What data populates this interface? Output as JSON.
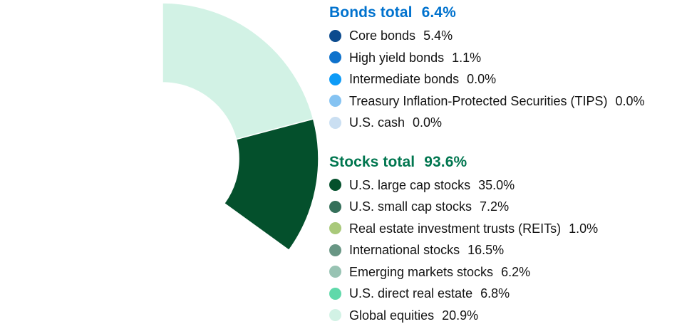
{
  "colors": {
    "background": "#FFFFFF",
    "bonds_accent": "#0072CE",
    "stocks_accent": "#00764F",
    "text": "#131313",
    "slice_separator": "#FFFFFF"
  },
  "legend": {
    "groups": [
      {
        "id": "bonds",
        "title": "Bonds total",
        "total": "6.4%",
        "accent_color": "#0072CE",
        "items": [
          {
            "label": "Core bonds",
            "value": "5.4%",
            "color": "#0C4B8E"
          },
          {
            "label": "High yield bonds",
            "value": "1.1%",
            "color": "#0E72CC"
          },
          {
            "label": "Intermediate bonds",
            "value": "0.0%",
            "color": "#0D9BF7"
          },
          {
            "label": "Treasury Inflation-Protected Securities (TIPS)",
            "value": "0.0%",
            "color": "#85C3F2"
          },
          {
            "label": "U.S. cash",
            "value": "0.0%",
            "color": "#CADFF2"
          }
        ]
      },
      {
        "id": "stocks",
        "title": "Stocks total",
        "total": "93.6%",
        "accent_color": "#00764F",
        "items": [
          {
            "label": "U.S. large cap stocks",
            "value": "35.0%",
            "color": "#04502C"
          },
          {
            "label": "U.S. small cap stocks",
            "value": "7.2%",
            "color": "#35705A"
          },
          {
            "label": "Real estate investment trusts (REITs)",
            "value": "1.0%",
            "color": "#A9C97A"
          },
          {
            "label": "International stocks",
            "value": "16.5%",
            "color": "#689684"
          },
          {
            "label": "Emerging markets stocks",
            "value": "6.2%",
            "color": "#98C3B3"
          },
          {
            "label": "U.S. direct real estate",
            "value": "6.8%",
            "color": "#5FD9AA"
          },
          {
            "label": "Global equities",
            "value": "20.9%",
            "color": "#D2F2E5"
          }
        ]
      }
    ]
  },
  "chart_data": {
    "type": "pie",
    "subtype": "donut",
    "title": "",
    "direction": "clockwise",
    "start_angle_deg": 0,
    "inner_radius_ratio": 0.49,
    "legend_position": "right",
    "groups": [
      {
        "name": "Bonds total",
        "value": 6.4
      },
      {
        "name": "Stocks total",
        "value": 93.6
      }
    ],
    "segments": [
      {
        "label": "Core bonds",
        "value": 5.4,
        "color": "#0C4B8E"
      },
      {
        "label": "High yield bonds",
        "value": 1.1,
        "color": "#0E72CC"
      },
      {
        "label": "Intermediate bonds",
        "value": 0.0,
        "color": "#0D9BF7"
      },
      {
        "label": "Treasury Inflation-Protected Securities (TIPS)",
        "value": 0.0,
        "color": "#85C3F2"
      },
      {
        "label": "U.S. cash",
        "value": 0.0,
        "color": "#CADFF2"
      },
      {
        "label": "U.S. large cap stocks",
        "value": 35.0,
        "color": "#04502C"
      },
      {
        "label": "U.S. small cap stocks",
        "value": 7.2,
        "color": "#35705A"
      },
      {
        "label": "Real estate investment trusts (REITs)",
        "value": 1.0,
        "color": "#A9C97A"
      },
      {
        "label": "International stocks",
        "value": 16.5,
        "color": "#689684"
      },
      {
        "label": "Emerging markets stocks",
        "value": 6.2,
        "color": "#98C3B3"
      },
      {
        "label": "U.S. direct real estate",
        "value": 6.8,
        "color": "#5FD9AA"
      },
      {
        "label": "Global equities",
        "value": 20.9,
        "color": "#D2F2E5"
      }
    ]
  }
}
